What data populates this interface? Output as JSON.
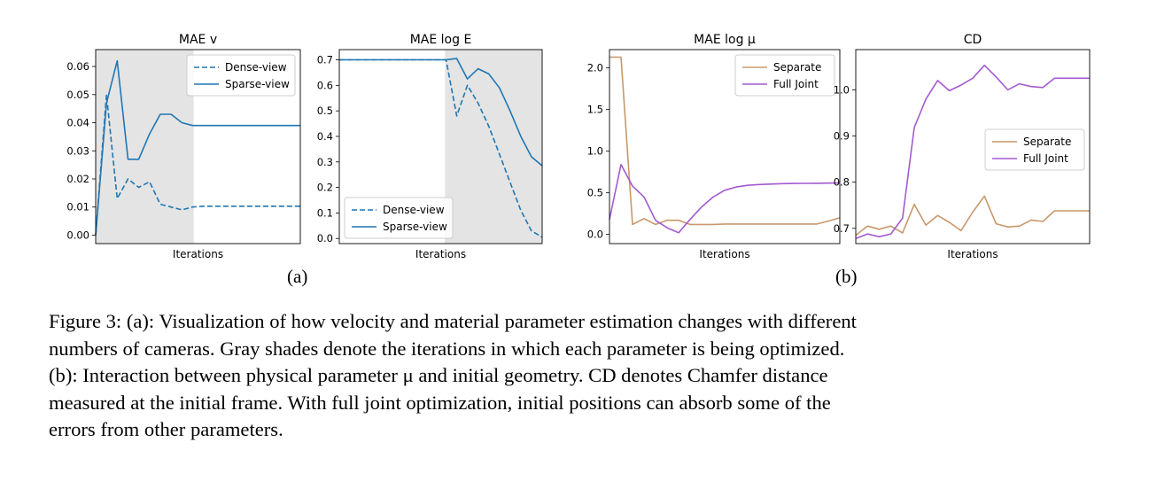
{
  "chart_data": [
    {
      "type": "line",
      "title": "MAE v",
      "xlabel": "Iterations",
      "ylabel": "",
      "x": [
        0,
        1,
        2,
        3,
        4,
        5,
        6,
        7,
        8,
        9,
        10,
        11,
        12,
        13,
        14,
        15,
        16,
        17,
        18,
        19
      ],
      "ylim": [
        -0.003,
        0.066
      ],
      "yticks": [
        "0.00",
        "0.01",
        "0.02",
        "0.03",
        "0.04",
        "0.05",
        "0.06"
      ],
      "ytick_values": [
        0,
        0.01,
        0.02,
        0.03,
        0.04,
        0.05,
        0.06
      ],
      "shaded_range": [
        0,
        9.1
      ],
      "legend_position": "upper right",
      "series": [
        {
          "name": "Dense-view",
          "style": "dashed",
          "color": "#1f77b4",
          "values": [
            0.0,
            0.05,
            0.013,
            0.02,
            0.017,
            0.019,
            0.011,
            0.01,
            0.009,
            0.01,
            0.0103,
            0.0103,
            0.0103,
            0.0103,
            0.0103,
            0.0103,
            0.0103,
            0.0103,
            0.0103,
            0.0103
          ]
        },
        {
          "name": "Sparse-view",
          "style": "solid",
          "color": "#1f77b4",
          "values": [
            0.0,
            0.047,
            0.062,
            0.027,
            0.027,
            0.036,
            0.043,
            0.043,
            0.04,
            0.039,
            0.039,
            0.039,
            0.039,
            0.039,
            0.039,
            0.039,
            0.039,
            0.039,
            0.039,
            0.039
          ]
        }
      ]
    },
    {
      "type": "line",
      "title": "MAE log E",
      "xlabel": "Iterations",
      "ylabel": "",
      "x": [
        0,
        1,
        2,
        3,
        4,
        5,
        6,
        7,
        8,
        9,
        10,
        11,
        12,
        13,
        14,
        15,
        16,
        17,
        18,
        19
      ],
      "ylim": [
        -0.02,
        0.74
      ],
      "yticks": [
        "0.0",
        "0.1",
        "0.2",
        "0.3",
        "0.4",
        "0.5",
        "0.6",
        "0.7"
      ],
      "ytick_values": [
        0,
        0.1,
        0.2,
        0.3,
        0.4,
        0.5,
        0.6,
        0.7
      ],
      "shaded_range": [
        9.9,
        19
      ],
      "legend_position": "lower left",
      "series": [
        {
          "name": "Dense-view",
          "style": "dashed",
          "color": "#1f77b4",
          "values": [
            0.7,
            0.7,
            0.7,
            0.7,
            0.7,
            0.7,
            0.7,
            0.7,
            0.7,
            0.7,
            0.7,
            0.48,
            0.6,
            0.53,
            0.44,
            0.33,
            0.22,
            0.11,
            0.03,
            0.005
          ]
        },
        {
          "name": "Sparse-view",
          "style": "solid",
          "color": "#1f77b4",
          "values": [
            0.7,
            0.7,
            0.7,
            0.7,
            0.7,
            0.7,
            0.7,
            0.7,
            0.7,
            0.7,
            0.7,
            0.705,
            0.625,
            0.665,
            0.645,
            0.59,
            0.5,
            0.4,
            0.32,
            0.285
          ]
        }
      ]
    },
    {
      "type": "line",
      "title": "MAE log μ",
      "xlabel": "Iterations",
      "ylabel": "",
      "x": [
        0,
        1,
        2,
        3,
        4,
        5,
        6,
        7,
        8,
        9,
        10,
        11,
        12,
        13,
        14,
        15,
        16,
        17,
        18,
        19,
        20
      ],
      "ylim": [
        -0.11,
        2.22
      ],
      "yticks": [
        "0.0",
        "0.5",
        "1.0",
        "1.5",
        "2.0"
      ],
      "ytick_values": [
        0,
        0.5,
        1.0,
        1.5,
        2.0
      ],
      "legend_position": "upper right",
      "series": [
        {
          "name": "Separate",
          "style": "solid",
          "color": "#c8986b",
          "values": [
            2.13,
            2.13,
            0.12,
            0.19,
            0.12,
            0.17,
            0.17,
            0.12,
            0.12,
            0.12,
            0.125,
            0.125,
            0.125,
            0.125,
            0.125,
            0.125,
            0.125,
            0.125,
            0.125,
            0.16,
            0.2
          ]
        },
        {
          "name": "Full Joint",
          "style": "solid",
          "color": "#a45ad0",
          "values": [
            0.18,
            0.84,
            0.58,
            0.45,
            0.17,
            0.08,
            0.02,
            0.18,
            0.33,
            0.45,
            0.53,
            0.57,
            0.59,
            0.6,
            0.605,
            0.61,
            0.612,
            0.613,
            0.615,
            0.617,
            0.618
          ]
        }
      ]
    },
    {
      "type": "line",
      "title": "CD",
      "xlabel": "Iterations",
      "ylabel": "",
      "x": [
        0,
        1,
        2,
        3,
        4,
        5,
        6,
        7,
        8,
        9,
        10,
        11,
        12,
        13,
        14,
        15,
        16,
        17,
        18,
        19,
        20
      ],
      "ylim": [
        0.667,
        1.087
      ],
      "yticks": [
        "0.7",
        "0.8",
        "0.9",
        "1.0"
      ],
      "ytick_values": [
        0.7,
        0.8,
        0.9,
        1.0
      ],
      "legend_position": "center right",
      "series": [
        {
          "name": "Separate",
          "style": "solid",
          "color": "#c8986b",
          "values": [
            0.685,
            0.705,
            0.698,
            0.705,
            0.69,
            0.752,
            0.707,
            0.728,
            0.713,
            0.695,
            0.735,
            0.77,
            0.71,
            0.703,
            0.705,
            0.718,
            0.715,
            0.738,
            0.738,
            0.738,
            0.738
          ]
        },
        {
          "name": "Full Joint",
          "style": "solid",
          "color": "#a45ad0",
          "values": [
            0.678,
            0.688,
            0.682,
            0.688,
            0.722,
            0.918,
            0.98,
            1.02,
            0.998,
            1.01,
            1.025,
            1.053,
            1.028,
            1.0,
            1.013,
            1.007,
            1.005,
            1.025,
            1.025,
            1.025,
            1.025
          ]
        }
      ]
    }
  ],
  "sublabels": [
    "(a)",
    "(b)"
  ],
  "caption": [
    "Figure 3: (a): Visualization of how velocity and material parameter estimation changes with different",
    "numbers of cameras. Gray shades denote the iterations in which each parameter is being optimized.",
    "(b): Interaction between physical parameter μ and initial geometry. CD denotes Chamfer distance",
    "measured at the initial frame. With full joint optimization, initial positions can absorb some of the",
    "errors from other parameters."
  ]
}
